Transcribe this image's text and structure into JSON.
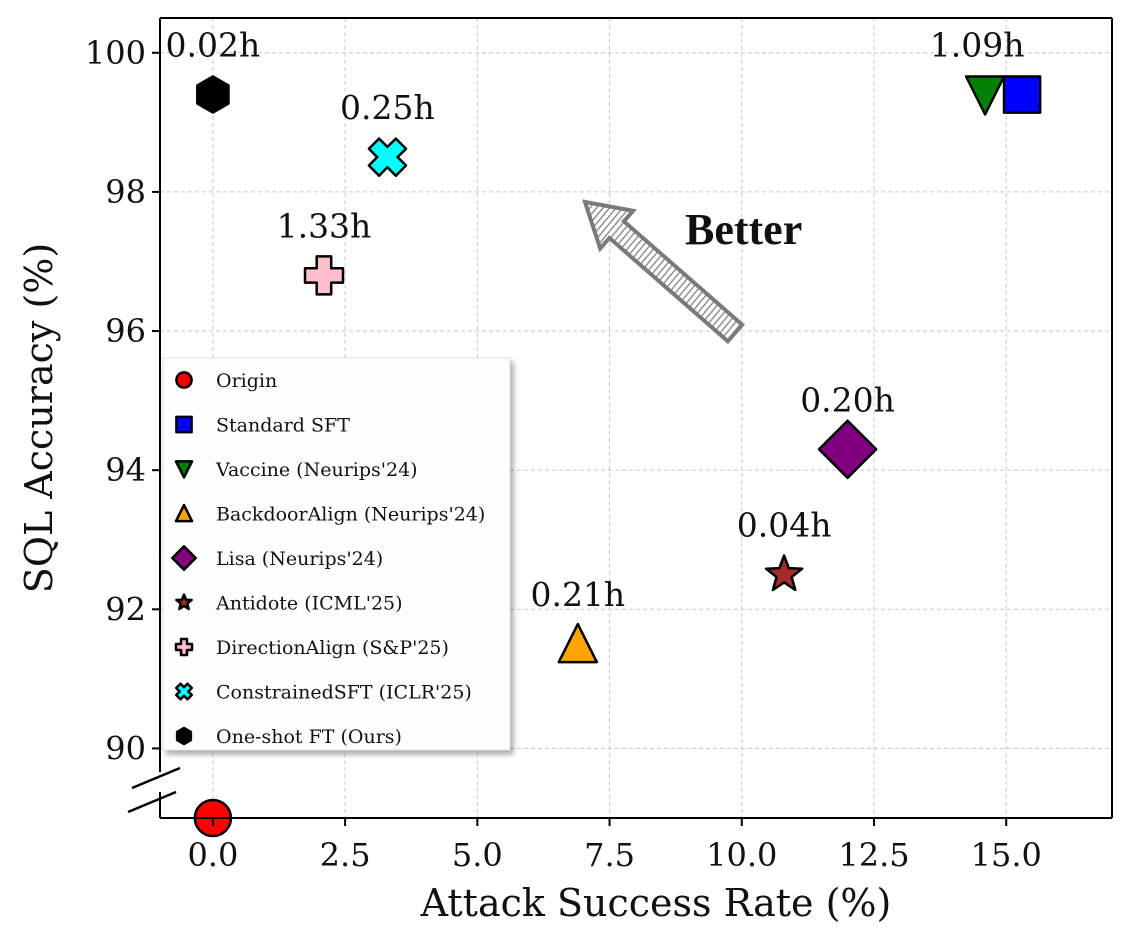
{
  "chart_data": {
    "type": "scatter",
    "xlabel": "Attack Success Rate (%)",
    "ylabel": "SQL Accuracy (%)",
    "xlim": [
      -1.0,
      17.0
    ],
    "ylim": [
      89.0,
      100.5
    ],
    "x_ticks": [
      0.0,
      2.5,
      5.0,
      7.5,
      10.0,
      12.5,
      15.0
    ],
    "x_tick_labels": [
      "0.0",
      "2.5",
      "5.0",
      "7.5",
      "10.0",
      "12.5",
      "15.0"
    ],
    "y_ticks": [
      90,
      92,
      94,
      96,
      98,
      100
    ],
    "y_tick_labels": [
      "90",
      "92",
      "94",
      "96",
      "98",
      "100"
    ],
    "y_axis_break": true,
    "grid": true,
    "legend_position": "center-left",
    "annotation": "Better",
    "series": [
      {
        "name": "Origin",
        "marker": "circle",
        "color": "#ff0000",
        "x": 0.0,
        "y": 89.0,
        "time_label": ""
      },
      {
        "name": "Standard SFT",
        "marker": "square",
        "color": "#0000ff",
        "x": 15.3,
        "y": 99.4,
        "time_label": "1.09h"
      },
      {
        "name": "Vaccine (Neurips'24)",
        "marker": "triangle-down",
        "color": "#008000",
        "x": 14.6,
        "y": 99.4,
        "time_label": ""
      },
      {
        "name": "BackdoorAlign (Neurips'24)",
        "marker": "triangle-up",
        "color": "#ffa500",
        "x": 6.9,
        "y": 91.5,
        "time_label": "0.21h"
      },
      {
        "name": "Lisa (Neurips'24)",
        "marker": "diamond",
        "color": "#800080",
        "x": 12.0,
        "y": 94.3,
        "time_label": "0.20h"
      },
      {
        "name": "Antidote (ICML'25)",
        "marker": "star",
        "color": "#a52a2a",
        "x": 10.8,
        "y": 92.5,
        "time_label": "0.04h"
      },
      {
        "name": "DirectionAlign (S&P'25)",
        "marker": "plus",
        "color": "#ffc0cb",
        "x": 2.1,
        "y": 96.8,
        "time_label": "1.33h"
      },
      {
        "name": "ConstrainedSFT (ICLR'25)",
        "marker": "x",
        "color": "#00ffff",
        "x": 3.3,
        "y": 98.5,
        "time_label": "0.25h"
      },
      {
        "name": "One-shot FT (Ours)",
        "marker": "hexagon",
        "color": "#000000",
        "x": 0.0,
        "y": 99.4,
        "time_label": "0.02h"
      }
    ]
  }
}
